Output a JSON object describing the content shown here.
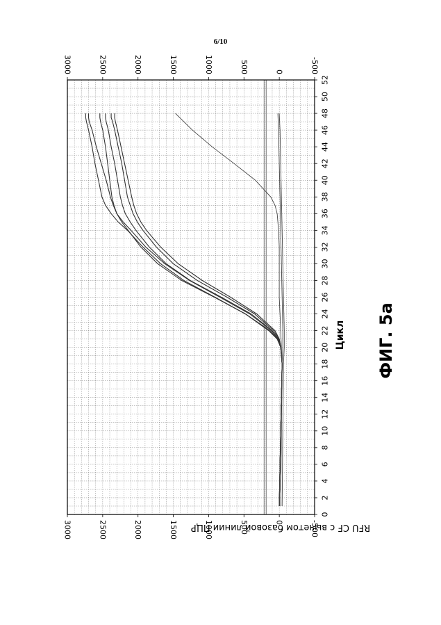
{
  "page": {
    "number": "6/10"
  },
  "figure": {
    "label": "ФИГ. 5a"
  },
  "chart_data": {
    "type": "line",
    "orientation": "rotated-90-clockwise",
    "xlabel": "Цикл",
    "ylabel": "RFU CF с вычетом базовой линии ПЦР",
    "xlim": [
      0,
      52
    ],
    "ylim": [
      -500,
      3000
    ],
    "x_ticks": [
      0,
      2,
      4,
      6,
      8,
      10,
      12,
      14,
      16,
      18,
      20,
      22,
      24,
      26,
      28,
      30,
      32,
      34,
      36,
      38,
      40,
      42,
      44,
      46,
      48,
      50,
      52
    ],
    "y_ticks": [
      3000,
      2500,
      2000,
      1500,
      1000,
      500,
      0,
      -500
    ],
    "y_ticks_mirrored": true,
    "grid": true,
    "threshold": 200,
    "series": [
      {
        "x": [
          1,
          10,
          18,
          20,
          21,
          22,
          24,
          26,
          28,
          30,
          32,
          34,
          35,
          36,
          37,
          38,
          40,
          42,
          44,
          46,
          47,
          47.5,
          48
        ],
        "y": [
          0,
          -20,
          -40,
          -20,
          30,
          150,
          480,
          910,
          1350,
          1680,
          1930,
          2150,
          2280,
          2380,
          2460,
          2510,
          2560,
          2610,
          2650,
          2700,
          2730,
          2740,
          2740
        ]
      },
      {
        "x": [
          1,
          10,
          18,
          20,
          21,
          22,
          24,
          26,
          28,
          30,
          32,
          34,
          35,
          36,
          37,
          38,
          40,
          42,
          44,
          46,
          47,
          47.5,
          48
        ],
        "y": [
          0,
          -20,
          -40,
          -20,
          10,
          110,
          420,
          840,
          1270,
          1620,
          1890,
          2100,
          2210,
          2300,
          2350,
          2390,
          2450,
          2520,
          2590,
          2650,
          2690,
          2700,
          2700
        ]
      },
      {
        "x": [
          1,
          10,
          18,
          20,
          21,
          22,
          24,
          26,
          28,
          30,
          32,
          34,
          35,
          36,
          37,
          38,
          40,
          42,
          44,
          46,
          47,
          47.5,
          48
        ],
        "y": [
          0,
          -20,
          -40,
          -20,
          20,
          130,
          480,
          920,
          1380,
          1720,
          1960,
          2140,
          2230,
          2300,
          2340,
          2370,
          2400,
          2430,
          2460,
          2500,
          2530,
          2540,
          2540
        ]
      },
      {
        "x": [
          1,
          10,
          18,
          20,
          21,
          22,
          24,
          26,
          28,
          30,
          32,
          34,
          35,
          36,
          37,
          38,
          40,
          42,
          44,
          46,
          47,
          47.5,
          48
        ],
        "y": [
          0,
          -20,
          -40,
          -20,
          10,
          100,
          400,
          820,
          1260,
          1600,
          1840,
          2030,
          2110,
          2180,
          2220,
          2250,
          2290,
          2330,
          2380,
          2420,
          2450,
          2460,
          2460
        ]
      },
      {
        "x": [
          1,
          10,
          18,
          20,
          21,
          22,
          24,
          26,
          28,
          30,
          32,
          34,
          35,
          36,
          37,
          38,
          40,
          42,
          44,
          46,
          47,
          47.5,
          48
        ],
        "y": [
          0,
          -20,
          -40,
          -20,
          0,
          80,
          350,
          740,
          1160,
          1500,
          1740,
          1930,
          2010,
          2070,
          2110,
          2150,
          2190,
          2230,
          2280,
          2330,
          2360,
          2380,
          2380
        ]
      },
      {
        "x": [
          1,
          10,
          18,
          20,
          21,
          22,
          24,
          26,
          28,
          30,
          32,
          34,
          35,
          36,
          37,
          38,
          40,
          42,
          44,
          46,
          47,
          47.5,
          48
        ],
        "y": [
          0,
          -20,
          -40,
          -20,
          0,
          60,
          320,
          690,
          1090,
          1430,
          1680,
          1880,
          1960,
          2020,
          2060,
          2090,
          2140,
          2190,
          2240,
          2290,
          2320,
          2330,
          2330
        ]
      },
      {
        "x": [
          1,
          10,
          18,
          20,
          22,
          24,
          26,
          28,
          30,
          32,
          34,
          36,
          37,
          38,
          40,
          42,
          44,
          46,
          48
        ],
        "y": [
          0,
          -20,
          -40,
          -30,
          -20,
          -10,
          0,
          0,
          0,
          0,
          10,
          30,
          60,
          120,
          340,
          640,
          950,
          1230,
          1470
        ]
      },
      {
        "x": [
          1,
          10,
          18,
          20,
          22,
          26,
          30,
          34,
          38,
          42,
          46,
          48
        ],
        "y": [
          -20,
          -30,
          -40,
          -50,
          -50,
          -40,
          -30,
          -20,
          -10,
          0,
          10,
          20
        ]
      },
      {
        "x": [
          1,
          10,
          18,
          20,
          22,
          26,
          30,
          34,
          38,
          42,
          46,
          48
        ],
        "y": [
          -40,
          -50,
          -60,
          -70,
          -70,
          -60,
          -50,
          -40,
          -30,
          -20,
          -10,
          0
        ]
      }
    ]
  }
}
